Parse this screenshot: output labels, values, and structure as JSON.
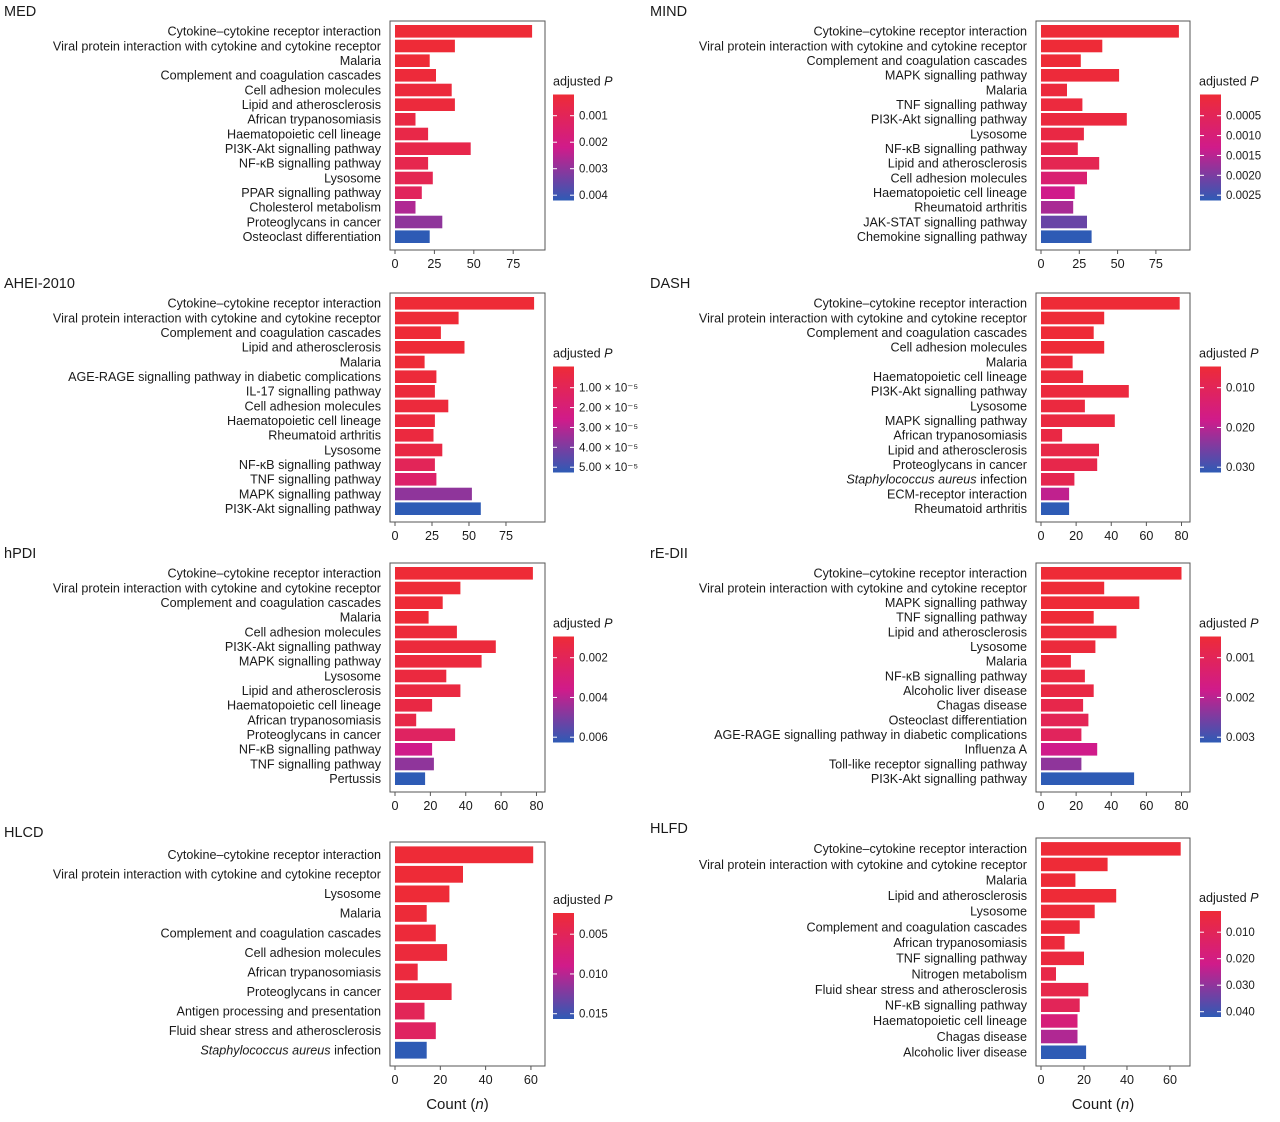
{
  "colors": {
    "high": "#EE2B37",
    "mid": "#D01B8A",
    "low": "#2E5BB5"
  },
  "chart_data": [
    {
      "type": "bar",
      "orientation": "horizontal",
      "title": "MED",
      "categories": [
        "Cytokine–cytokine receptor interaction",
        "Viral protein interaction with cytokine and cytokine receptor",
        "Malaria",
        "Complement and coagulation cascades",
        "Cell adhesion molecules",
        "Lipid and atherosclerosis",
        "African trypanosomiasis",
        "Haematopoietic cell lineage",
        "PI3K-Akt signalling pathway",
        "NF-κB signalling pathway",
        "Lysosome",
        "PPAR signalling pathway",
        "Cholesterol metabolism",
        "Proteoglycans in cancer",
        "Osteoclast differentiation"
      ],
      "values": [
        87,
        38,
        22,
        26,
        36,
        38,
        13,
        21,
        48,
        21,
        24,
        17,
        13,
        30,
        22
      ],
      "color_t": [
        0.0,
        0.0,
        0.0,
        0.02,
        0.03,
        0.03,
        0.08,
        0.1,
        0.12,
        0.14,
        0.16,
        0.22,
        0.6,
        0.7,
        1.0
      ],
      "xticks": [
        0,
        25,
        50,
        75
      ],
      "xlim": [
        0,
        92
      ],
      "xlabel": "",
      "legend_title": "adjusted P",
      "legend_ticks": [
        "0.001",
        "0.002",
        "0.003",
        "0.004"
      ]
    },
    {
      "type": "bar",
      "orientation": "horizontal",
      "title": "MIND",
      "categories": [
        "Cytokine–cytokine receptor interaction",
        "Viral protein interaction with cytokine and cytokine receptor",
        "Complement and coagulation cascades",
        "MAPK signalling pathway",
        "Malaria",
        "TNF signalling pathway",
        "PI3K-Akt signalling pathway",
        "Lysosome",
        "NF-κB signalling pathway",
        "Lipid and atherosclerosis",
        "Cell adhesion molecules",
        "Haematopoietic cell lineage",
        "Rheumatoid arthritis",
        "JAK-STAT signalling pathway",
        "Chemokine signalling pathway"
      ],
      "values": [
        90,
        40,
        26,
        51,
        17,
        27,
        56,
        28,
        24,
        38,
        30,
        22,
        21,
        30,
        33
      ],
      "color_t": [
        0.0,
        0.0,
        0.0,
        0.02,
        0.03,
        0.04,
        0.05,
        0.08,
        0.12,
        0.16,
        0.35,
        0.5,
        0.62,
        0.82,
        1.0
      ],
      "xticks": [
        0,
        25,
        50,
        75
      ],
      "xlim": [
        0,
        94
      ],
      "xlabel": "",
      "legend_title": "adjusted P",
      "legend_ticks": [
        "0.0005",
        "0.0010",
        "0.0015",
        "0.0020",
        "0.0025"
      ]
    },
    {
      "type": "bar",
      "orientation": "horizontal",
      "title": "AHEI-2010",
      "categories": [
        "Cytokine–cytokine receptor interaction",
        "Viral protein interaction with cytokine and cytokine receptor",
        "Complement and coagulation cascades",
        "Lipid and atherosclerosis",
        "Malaria",
        "AGE-RAGE signalling pathway in diabetic complications",
        "IL-17 signalling pathway",
        "Cell adhesion molecules",
        "Haematopoietic cell lineage",
        "Rheumatoid arthritis",
        "Lysosome",
        "NF-κB signalling pathway",
        "TNF signalling pathway",
        "MAPK signalling pathway",
        "PI3K-Akt signalling pathway"
      ],
      "values": [
        94,
        43,
        31,
        47,
        20,
        28,
        27,
        36,
        27,
        26,
        32,
        27,
        28,
        52,
        58
      ],
      "color_t": [
        0.0,
        0.0,
        0.0,
        0.0,
        0.0,
        0.02,
        0.03,
        0.03,
        0.04,
        0.05,
        0.08,
        0.2,
        0.3,
        0.7,
        1.0
      ],
      "xticks": [
        0,
        25,
        50,
        75
      ],
      "xlim": [
        0,
        98
      ],
      "xlabel": "",
      "legend_title": "adjusted P",
      "legend_ticks": [
        "1.00 × 10⁻⁵",
        "2.00 × 10⁻⁵",
        "3.00 × 10⁻⁵",
        "4.00 × 10⁻⁵",
        "5.00 × 10⁻⁵"
      ]
    },
    {
      "type": "bar",
      "orientation": "horizontal",
      "title": "DASH",
      "categories": [
        "Cytokine–cytokine receptor interaction",
        "Viral protein interaction with cytokine and cytokine receptor",
        "Complement and coagulation cascades",
        "Cell adhesion molecules",
        "Malaria",
        "Haematopoietic cell lineage",
        "PI3K-Akt signalling pathway",
        "Lysosome",
        "MAPK signalling pathway",
        "African trypanosomiasis",
        "Lipid and atherosclerosis",
        "Proteoglycans in cancer",
        "Staphylococcus aureus infection",
        "ECM-receptor interaction",
        "Rheumatoid arthritis"
      ],
      "values": [
        79,
        36,
        30,
        36,
        18,
        24,
        50,
        25,
        42,
        12,
        33,
        32,
        19,
        16,
        16
      ],
      "color_t": [
        0.0,
        0.0,
        0.0,
        0.0,
        0.02,
        0.03,
        0.04,
        0.05,
        0.06,
        0.08,
        0.1,
        0.12,
        0.15,
        0.55,
        1.0
      ],
      "xticks": [
        0,
        20,
        40,
        60,
        80
      ],
      "xlim": [
        0,
        82
      ],
      "xlabel": "",
      "legend_title": "adjusted P",
      "legend_ticks": [
        "0.010",
        "0.020",
        "0.030"
      ]
    },
    {
      "type": "bar",
      "orientation": "horizontal",
      "title": "hPDI",
      "categories": [
        "Cytokine–cytokine receptor interaction",
        "Viral protein interaction with cytokine and cytokine receptor",
        "Complement and coagulation cascades",
        "Malaria",
        "Cell adhesion molecules",
        "PI3K-Akt signalling pathway",
        "MAPK signalling pathway",
        "Lysosome",
        "Lipid and atherosclerosis",
        "Haematopoietic cell lineage",
        "African trypanosomiasis",
        "Proteoglycans in cancer",
        "NF-κB signalling pathway",
        "TNF signalling pathway",
        "Pertussis"
      ],
      "values": [
        78,
        37,
        27,
        19,
        35,
        57,
        49,
        29,
        37,
        21,
        12,
        34,
        21,
        22,
        17
      ],
      "color_t": [
        0.0,
        0.0,
        0.0,
        0.0,
        0.02,
        0.03,
        0.04,
        0.05,
        0.06,
        0.08,
        0.1,
        0.25,
        0.5,
        0.7,
        1.0
      ],
      "xticks": [
        0,
        20,
        40,
        60,
        80
      ],
      "xlim": [
        0,
        82
      ],
      "xlabel": "",
      "legend_title": "adjusted P",
      "legend_ticks": [
        "0.002",
        "0.004",
        "0.006"
      ]
    },
    {
      "type": "bar",
      "orientation": "horizontal",
      "title": "rE-DII",
      "categories": [
        "Cytokine–cytokine receptor interaction",
        "Viral protein interaction with cytokine and cytokine receptor",
        "MAPK signalling pathway",
        "TNF signalling pathway",
        "Lipid and atherosclerosis",
        "Lysosome",
        "Malaria",
        "NF-κB signalling pathway",
        "Alcoholic liver disease",
        "Chagas disease",
        "Osteoclast differentiation",
        "AGE-RAGE signalling pathway in diabetic complications",
        "Influenza A",
        "Toll-like receptor signalling pathway",
        "PI3K-Akt signalling pathway"
      ],
      "values": [
        80,
        36,
        56,
        30,
        43,
        31,
        17,
        25,
        30,
        24,
        27,
        23,
        32,
        23,
        53
      ],
      "color_t": [
        0.0,
        0.0,
        0.0,
        0.0,
        0.02,
        0.03,
        0.04,
        0.06,
        0.08,
        0.12,
        0.18,
        0.22,
        0.5,
        0.7,
        1.0
      ],
      "xticks": [
        0,
        20,
        40,
        60,
        80
      ],
      "xlim": [
        0,
        82
      ],
      "xlabel": "",
      "legend_title": "adjusted P",
      "legend_ticks": [
        "0.001",
        "0.002",
        "0.003"
      ]
    },
    {
      "type": "bar",
      "orientation": "horizontal",
      "title": "HLCD",
      "categories": [
        "Cytokine–cytokine receptor interaction",
        "Viral protein interaction with cytokine and cytokine receptor",
        "Lysosome",
        "Malaria",
        "Complement and coagulation cascades",
        "Cell adhesion molecules",
        "African trypanosomiasis",
        "Proteoglycans in cancer",
        "Antigen processing and presentation",
        "Fluid shear stress and atherosclerosis",
        "Staphylococcus aureus infection"
      ],
      "values": [
        61,
        30,
        24,
        14,
        18,
        23,
        10,
        25,
        13,
        18,
        14
      ],
      "color_t": [
        0.0,
        0.0,
        0.0,
        0.01,
        0.02,
        0.03,
        0.04,
        0.06,
        0.2,
        0.25,
        1.0
      ],
      "xticks": [
        0,
        20,
        40,
        60
      ],
      "xlim": [
        0,
        64
      ],
      "xlabel": "Count (n)",
      "legend_title": "adjusted P",
      "legend_ticks": [
        "0.005",
        "0.010",
        "0.015"
      ]
    },
    {
      "type": "bar",
      "orientation": "horizontal",
      "title": "HLFD",
      "categories": [
        "Cytokine–cytokine receptor interaction",
        "Viral protein interaction with cytokine and cytokine receptor",
        "Malaria",
        "Lipid and atherosclerosis",
        "Lysosome",
        "Complement and coagulation cascades",
        "African trypanosomiasis",
        "TNF signalling pathway",
        "Nitrogen metabolism",
        "Fluid shear stress and atherosclerosis",
        "NF-κB signalling pathway",
        "Haematopoietic cell lineage",
        "Chagas disease",
        "Alcoholic liver disease"
      ],
      "values": [
        65,
        31,
        16,
        35,
        25,
        18,
        11,
        20,
        7,
        22,
        18,
        17,
        17,
        21
      ],
      "color_t": [
        0.0,
        0.0,
        0.0,
        0.0,
        0.01,
        0.02,
        0.03,
        0.05,
        0.1,
        0.12,
        0.2,
        0.4,
        0.6,
        1.0
      ],
      "xticks": [
        0,
        20,
        40,
        60
      ],
      "xlim": [
        0,
        67
      ],
      "xlabel": "Count (n)",
      "legend_title": "adjusted P",
      "legend_ticks": [
        "0.010",
        "0.020",
        "0.030",
        "0.040"
      ]
    }
  ]
}
